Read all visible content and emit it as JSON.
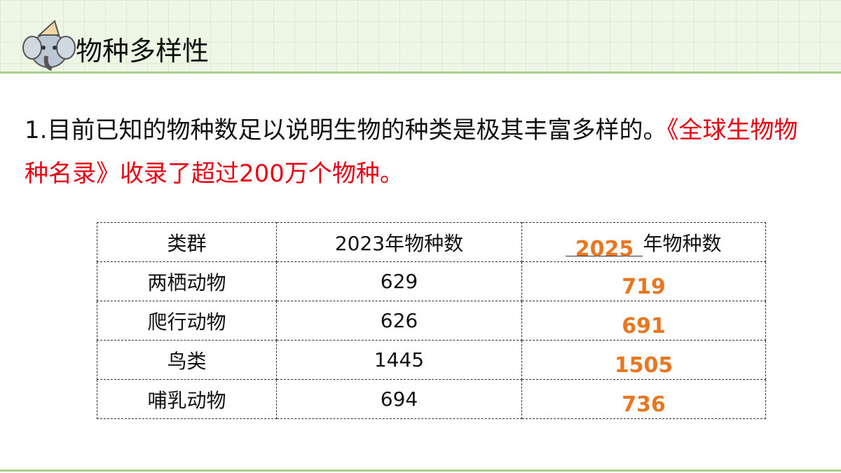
{
  "header": {
    "title": "物种多样性"
  },
  "paragraph": {
    "text": "1.目前已知的物种数足以说明生物的种类是极其丰富多样的。",
    "highlight": "《全球生物物种名录》收录了超过200万个物种。"
  },
  "table": {
    "headers": [
      "类群",
      "2023年物种数",
      {
        "answer": "2025",
        "text": "年物种数"
      }
    ],
    "rows": [
      [
        "两栖动物",
        629,
        719
      ],
      [
        "爬行动物",
        626,
        691
      ],
      [
        "鸟类",
        1445,
        1505
      ],
      [
        "哺乳动物",
        694,
        736
      ]
    ]
  }
}
